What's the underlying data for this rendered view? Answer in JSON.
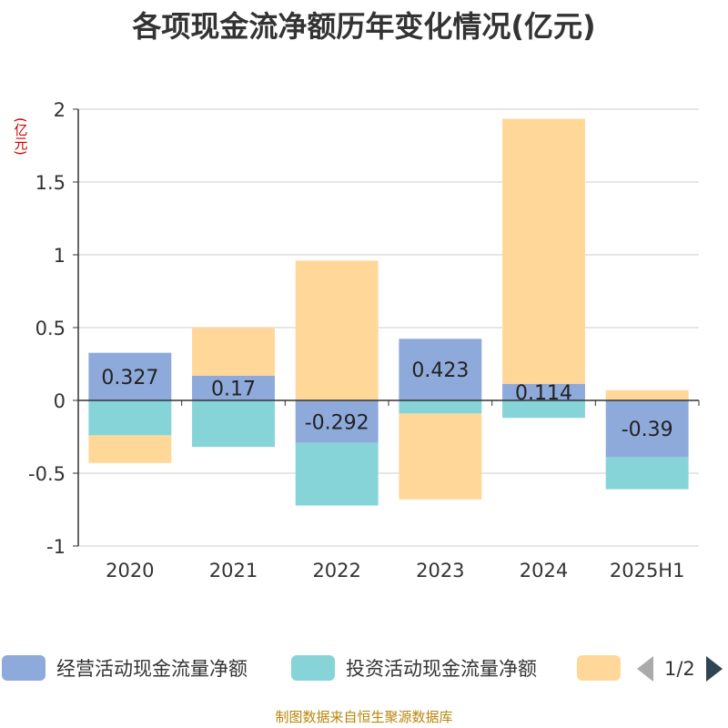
{
  "chart_data": {
    "type": "bar",
    "title": "各项现金流净额历年变化情况(亿元)",
    "y_unit": "(亿元)",
    "categories": [
      "2020",
      "2021",
      "2022",
      "2023",
      "2024",
      "2025H1"
    ],
    "stacked": true,
    "ylim": [
      -1,
      2
    ],
    "yticks": [
      -1,
      -0.5,
      0,
      0.5,
      1,
      1.5,
      2
    ],
    "ytick_labels": [
      "-1",
      "-0.5",
      "0",
      "0.5",
      "1",
      "1.5",
      "2"
    ],
    "grid": true,
    "legend_position": "bottom",
    "series": [
      {
        "name": "经营活动现金流量净额",
        "color": "#8eaadb",
        "values": [
          0.327,
          0.17,
          -0.292,
          0.423,
          0.114,
          -0.39
        ],
        "data_labels": [
          "0.327",
          "0.17",
          "-0.292",
          "0.423",
          "0.114",
          "-0.39"
        ]
      },
      {
        "name": "投资活动现金流量净额",
        "color": "#87d4d8",
        "values": [
          -0.24,
          -0.32,
          -0.43,
          -0.09,
          -0.12,
          -0.22
        ]
      },
      {
        "name": "",
        "color": "#ffd899",
        "values": [
          -0.19,
          0.33,
          0.96,
          -0.59,
          1.82,
          0.07
        ]
      }
    ]
  },
  "legend": {
    "page_indicator": "1/2",
    "prev_icon": "triangle-left-icon",
    "next_icon": "triangle-right-icon"
  },
  "source_note": "制图数据来自恒生聚源数据库"
}
